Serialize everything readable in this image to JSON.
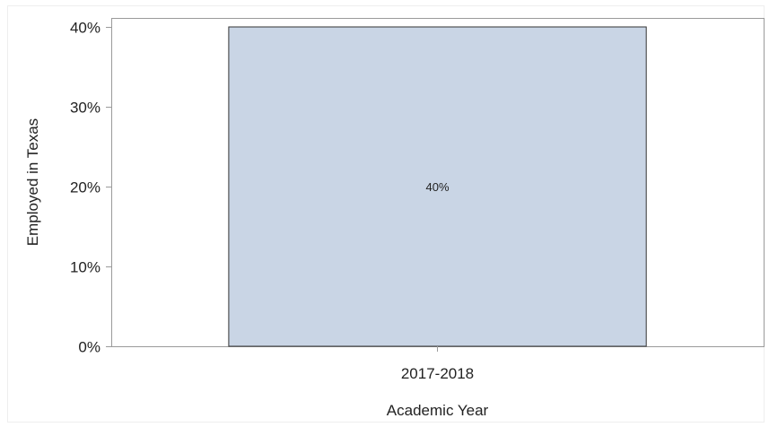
{
  "chart_data": {
    "type": "bar",
    "title": "",
    "xlabel": "Academic Year",
    "ylabel": "Employed in Texas",
    "categories": [
      "2017-2018"
    ],
    "values": [
      40
    ],
    "data_labels": [
      "40%"
    ],
    "ylim": [
      0,
      40
    ],
    "yticks": [
      0,
      10,
      20,
      30,
      40
    ],
    "ytick_labels": [
      "0%",
      "10%",
      "20%",
      "30%",
      "40%"
    ],
    "grid": false,
    "legend": "none",
    "colors": {
      "bar_fill": "#c9d5e5",
      "bar_stroke": "#333333",
      "axis": "#9a9a9a",
      "text": "#222222"
    }
  }
}
